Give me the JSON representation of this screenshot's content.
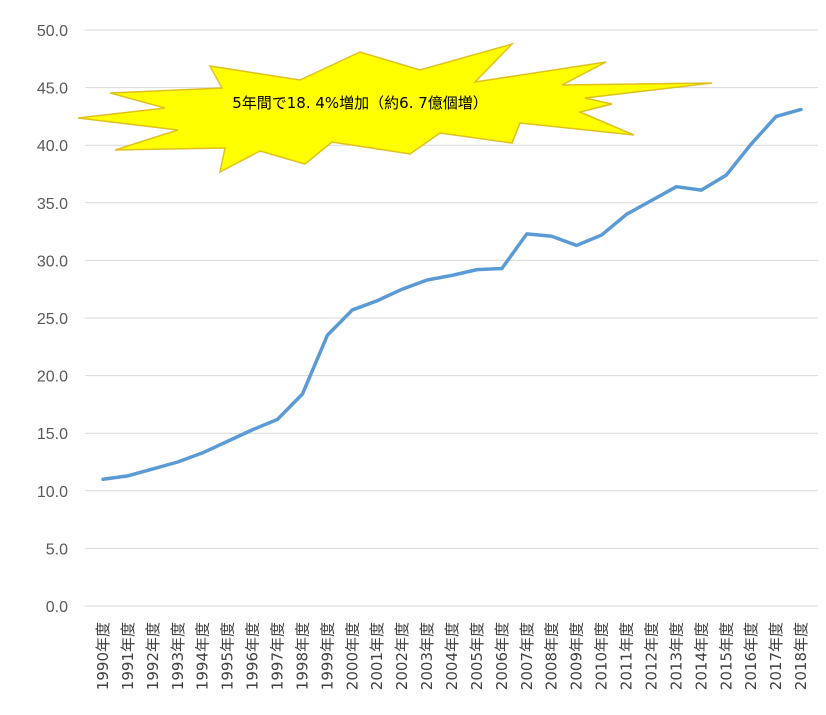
{
  "chart_data": {
    "type": "line",
    "title": "",
    "xlabel": "",
    "ylabel": "",
    "ylim": [
      0,
      50
    ],
    "y_tick_labels": [
      "0.0",
      "5.0",
      "10.0",
      "15.0",
      "20.0",
      "25.0",
      "30.0",
      "35.0",
      "40.0",
      "45.0",
      "50.0"
    ],
    "y_ticks": [
      0,
      5,
      10,
      15,
      20,
      25,
      30,
      35,
      40,
      45,
      50
    ],
    "grid": true,
    "legend": "none",
    "categories": [
      "1990年度",
      "1991年度",
      "1992年度",
      "1993年度",
      "1994年度",
      "1995年度",
      "1996年度",
      "1997年度",
      "1998年度",
      "1999年度",
      "2000年度",
      "2001年度",
      "2002年度",
      "2003年度",
      "2004年度",
      "2005年度",
      "2006年度",
      "2007年度",
      "2008年度",
      "2009年度",
      "2010年度",
      "2011年度",
      "2012年度",
      "2013年度",
      "2014年度",
      "2015年度",
      "2016年度",
      "2017年度",
      "2018年度"
    ],
    "series": [
      {
        "color": "#5b9bd5",
        "values": [
          11.0,
          11.3,
          11.9,
          12.5,
          13.3,
          14.3,
          15.3,
          16.2,
          18.4,
          23.5,
          25.7,
          26.5,
          27.5,
          28.3,
          28.7,
          29.2,
          29.3,
          32.3,
          32.1,
          31.3,
          32.2,
          34.0,
          35.2,
          36.4,
          36.1,
          37.4,
          40.1,
          42.5,
          43.1
        ]
      }
    ],
    "annotation": {
      "text": "5年間で18. 4%増加（約6. 7億個増）",
      "fill_color": "#ffff00",
      "stroke_color": "#e0c020"
    }
  }
}
